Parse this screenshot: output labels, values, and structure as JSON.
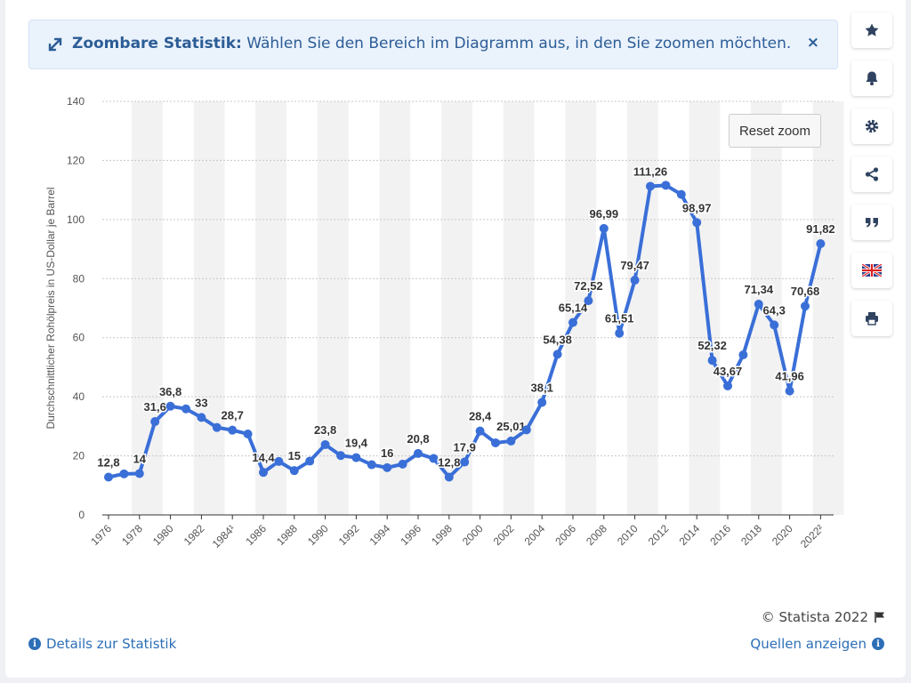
{
  "notice": {
    "title": "Zoombare Statistik:",
    "text": "Wählen Sie den Bereich im Diagramm aus, in den Sie zoomen möchten.",
    "close": "×"
  },
  "toolbar": {
    "icons": [
      "star-icon",
      "bell-icon",
      "gear-icon",
      "share-icon",
      "quote-icon",
      "uk-flag-icon",
      "print-icon"
    ]
  },
  "reset_zoom_label": "Reset zoom",
  "footer": {
    "copyright": "© Statista 2022",
    "details": "Details zur Statistik",
    "sources": "Quellen anzeigen"
  },
  "colors": {
    "accent": "#3a6fd8",
    "link": "#2c6fb7"
  },
  "chart_data": {
    "type": "line",
    "ylabel": "Durchschnittlicher Rohölpreis in US-Dollar je Barrel",
    "ylim": [
      0,
      140
    ],
    "yticks": [
      0,
      20,
      40,
      60,
      80,
      100,
      120,
      140
    ],
    "grid": true,
    "x": [
      "1976",
      "1977",
      "1978",
      "1979",
      "1980",
      "1981",
      "1982",
      "1983",
      "1984¹",
      "1985",
      "1986",
      "1987",
      "1988",
      "1989",
      "1990",
      "1991",
      "1992",
      "1993",
      "1994",
      "1995",
      "1996",
      "1997",
      "1998",
      "1999",
      "2000",
      "2001",
      "2002",
      "2003",
      "2004",
      "2005",
      "2006",
      "2007",
      "2008",
      "2009",
      "2010",
      "2011",
      "2012",
      "2013",
      "2014",
      "2015",
      "2016",
      "2017",
      "2018",
      "2019",
      "2020",
      "2021",
      "2022²"
    ],
    "xtick_labels": [
      "1976",
      "1978",
      "1980",
      "1982",
      "1984¹",
      "1986",
      "1988",
      "1990",
      "1992",
      "1994",
      "1996",
      "1998",
      "2000",
      "2002",
      "2004",
      "2006",
      "2008",
      "2010",
      "2012",
      "2014",
      "2016",
      "2018",
      "2020",
      "2022²"
    ],
    "values": [
      12.8,
      13.9,
      14,
      31.6,
      36.8,
      35.9,
      33,
      29.6,
      28.7,
      27.4,
      14.4,
      18.1,
      15,
      18.2,
      23.8,
      20.1,
      19.4,
      17,
      16,
      17.2,
      20.8,
      19.1,
      12.8,
      17.9,
      28.4,
      24.4,
      25.01,
      28.8,
      38.1,
      54.38,
      65.14,
      72.52,
      96.99,
      61.51,
      79.47,
      111.26,
      111.6,
      108.5,
      98.97,
      52.32,
      43.67,
      54.2,
      71.34,
      64.3,
      41.96,
      70.68,
      91.82
    ],
    "data_labels": [
      "12,8",
      null,
      "14",
      "31,6",
      "36,8",
      null,
      "33",
      null,
      "28,7",
      null,
      "14,4",
      null,
      "15",
      null,
      "23,8",
      null,
      "19,4",
      null,
      "16",
      null,
      "20,8",
      null,
      "12,8",
      "17,9",
      "28,4",
      null,
      "25,01",
      null,
      "38,1",
      "54,38",
      "65,14",
      "72,52",
      "96,99",
      "61,51",
      "79,47",
      "111,26",
      null,
      null,
      "98,97",
      "52,32",
      "43,67",
      null,
      "71,34",
      "64,3",
      "41,96",
      "70,68",
      "91,82"
    ]
  }
}
